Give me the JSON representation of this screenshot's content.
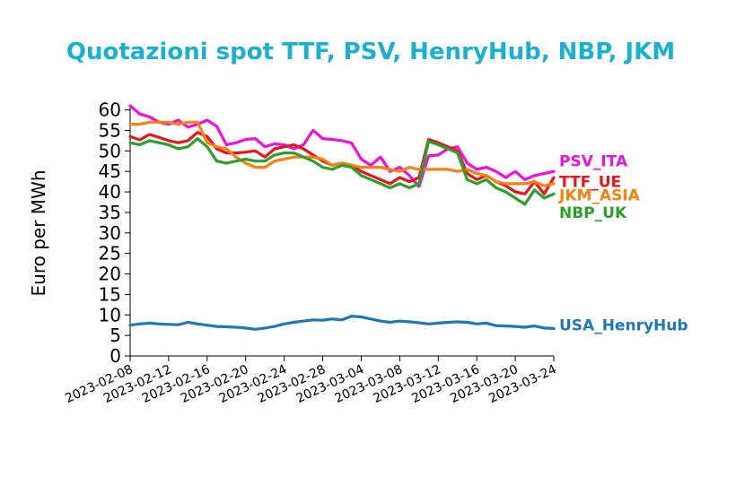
{
  "chart_data": {
    "type": "line",
    "title": "Quotazioni spot TTF, PSV, HenryHub, NBP, JKM",
    "ylabel": "Euro per MWh",
    "xlabel": "",
    "ylim": [
      0,
      61
    ],
    "yticks": [
      0,
      5,
      10,
      15,
      20,
      25,
      30,
      35,
      40,
      45,
      50,
      55,
      60
    ],
    "xlim": [
      "2023-02-08",
      "2023-03-24"
    ],
    "xticks": [
      "2023-02-08",
      "2023-02-12",
      "2023-02-16",
      "2023-02-20",
      "2023-02-24",
      "2023-02-28",
      "2023-03-04",
      "2023-03-08",
      "2023-03-12",
      "2023-03-16",
      "2023-03-20",
      "2023-03-24"
    ],
    "grid": false,
    "legend": "right, labels at series ends",
    "series": [
      {
        "name": "PSV_ITA",
        "color": "#ee11dd",
        "label_value": 47.5,
        "points": [
          [
            "2023-02-08",
            61
          ],
          [
            "2023-02-09",
            59
          ],
          [
            "2023-02-10",
            58.3
          ],
          [
            "2023-02-11",
            57
          ],
          [
            "2023-02-12",
            56.5
          ],
          [
            "2023-02-13",
            57.5
          ],
          [
            "2023-02-14",
            55.8
          ],
          [
            "2023-02-15",
            56.5
          ],
          [
            "2023-02-16",
            57.5
          ],
          [
            "2023-02-17",
            56
          ],
          [
            "2023-02-18",
            51.5
          ],
          [
            "2023-02-19",
            52
          ],
          [
            "2023-02-20",
            52.8
          ],
          [
            "2023-02-21",
            53
          ],
          [
            "2023-02-22",
            51
          ],
          [
            "2023-02-23",
            51.7
          ],
          [
            "2023-02-24",
            51.5
          ],
          [
            "2023-02-25",
            50.5
          ],
          [
            "2023-02-26",
            51.5
          ],
          [
            "2023-02-27",
            55
          ],
          [
            "2023-02-28",
            53
          ],
          [
            "2023-03-01",
            52.8
          ],
          [
            "2023-03-02",
            52.5
          ],
          [
            "2023-03-03",
            51.9
          ],
          [
            "2023-03-04",
            48
          ],
          [
            "2023-03-05",
            46.5
          ],
          [
            "2023-03-06",
            48.5
          ],
          [
            "2023-03-07",
            45
          ],
          [
            "2023-03-08",
            46
          ],
          [
            "2023-03-09",
            44
          ],
          [
            "2023-03-10",
            41.3
          ],
          [
            "2023-03-11",
            48.8
          ],
          [
            "2023-03-12",
            49
          ],
          [
            "2023-03-13",
            50.5
          ],
          [
            "2023-03-14",
            51
          ],
          [
            "2023-03-15",
            47
          ],
          [
            "2023-03-16",
            45.5
          ],
          [
            "2023-03-17",
            46
          ],
          [
            "2023-03-18",
            45
          ],
          [
            "2023-03-19",
            43.5
          ],
          [
            "2023-03-20",
            45
          ],
          [
            "2023-03-21",
            43
          ],
          [
            "2023-03-22",
            44
          ],
          [
            "2023-03-23",
            44.5
          ],
          [
            "2023-03-24",
            45
          ]
        ]
      },
      {
        "name": "TTF_UE",
        "color": "#e8161a",
        "label_value": 42.5,
        "points": [
          [
            "2023-02-08",
            53.5
          ],
          [
            "2023-02-09",
            52.7
          ],
          [
            "2023-02-10",
            54
          ],
          [
            "2023-02-11",
            53.3
          ],
          [
            "2023-02-12",
            52.5
          ],
          [
            "2023-02-13",
            52
          ],
          [
            "2023-02-14",
            52.5
          ],
          [
            "2023-02-15",
            54.5
          ],
          [
            "2023-02-16",
            53.5
          ],
          [
            "2023-02-17",
            50.5
          ],
          [
            "2023-02-18",
            49.5
          ],
          [
            "2023-02-19",
            49.5
          ],
          [
            "2023-02-20",
            49.7
          ],
          [
            "2023-02-21",
            50
          ],
          [
            "2023-02-22",
            48.5
          ],
          [
            "2023-02-23",
            50.5
          ],
          [
            "2023-02-24",
            51
          ],
          [
            "2023-02-25",
            51.5
          ],
          [
            "2023-02-26",
            50.5
          ],
          [
            "2023-02-27",
            49
          ],
          [
            "2023-02-28",
            47.5
          ],
          [
            "2023-03-01",
            46.5
          ],
          [
            "2023-03-02",
            47
          ],
          [
            "2023-03-03",
            46.5
          ],
          [
            "2023-03-04",
            45
          ],
          [
            "2023-03-05",
            44
          ],
          [
            "2023-03-06",
            43
          ],
          [
            "2023-03-07",
            42
          ],
          [
            "2023-03-08",
            43.5
          ],
          [
            "2023-03-09",
            42.5
          ],
          [
            "2023-03-10",
            43.5
          ],
          [
            "2023-03-11",
            52.8
          ],
          [
            "2023-03-12",
            52
          ],
          [
            "2023-03-13",
            51
          ],
          [
            "2023-03-14",
            50
          ],
          [
            "2023-03-15",
            44.5
          ],
          [
            "2023-03-16",
            43
          ],
          [
            "2023-03-17",
            44
          ],
          [
            "2023-03-18",
            42.5
          ],
          [
            "2023-03-19",
            41.5
          ],
          [
            "2023-03-20",
            40
          ],
          [
            "2023-03-21",
            39.5
          ],
          [
            "2023-03-22",
            42.5
          ],
          [
            "2023-03-23",
            39.5
          ],
          [
            "2023-03-24",
            43.5
          ]
        ]
      },
      {
        "name": "JKM_ASIA",
        "color": "#ff7f0e",
        "label_value": 39.3,
        "points": [
          [
            "2023-02-08",
            56.5
          ],
          [
            "2023-02-09",
            56.5
          ],
          [
            "2023-02-10",
            57
          ],
          [
            "2023-02-11",
            57
          ],
          [
            "2023-02-12",
            57
          ],
          [
            "2023-02-13",
            56.5
          ],
          [
            "2023-02-14",
            57
          ],
          [
            "2023-02-15",
            57
          ],
          [
            "2023-02-16",
            52
          ],
          [
            "2023-02-17",
            51
          ],
          [
            "2023-02-18",
            50.5
          ],
          [
            "2023-02-19",
            48.5
          ],
          [
            "2023-02-20",
            47
          ],
          [
            "2023-02-21",
            46
          ],
          [
            "2023-02-22",
            46
          ],
          [
            "2023-02-23",
            47.5
          ],
          [
            "2023-02-24",
            48
          ],
          [
            "2023-02-25",
            48.5
          ],
          [
            "2023-02-26",
            48.5
          ],
          [
            "2023-02-27",
            48.5
          ],
          [
            "2023-02-28",
            48
          ],
          [
            "2023-03-01",
            46.5
          ],
          [
            "2023-03-02",
            47
          ],
          [
            "2023-03-03",
            46.5
          ],
          [
            "2023-03-04",
            46
          ],
          [
            "2023-03-05",
            46
          ],
          [
            "2023-03-06",
            46
          ],
          [
            "2023-03-07",
            45.5
          ],
          [
            "2023-03-08",
            45
          ],
          [
            "2023-03-09",
            46
          ],
          [
            "2023-03-10",
            45.5
          ],
          [
            "2023-03-11",
            45.5
          ],
          [
            "2023-03-12",
            45.5
          ],
          [
            "2023-03-13",
            45.5
          ],
          [
            "2023-03-14",
            45
          ],
          [
            "2023-03-15",
            45.5
          ],
          [
            "2023-03-16",
            44.5
          ],
          [
            "2023-03-17",
            44
          ],
          [
            "2023-03-18",
            42.5
          ],
          [
            "2023-03-19",
            42
          ],
          [
            "2023-03-20",
            42
          ],
          [
            "2023-03-21",
            42
          ],
          [
            "2023-03-22",
            42.5
          ],
          [
            "2023-03-23",
            41.5
          ],
          [
            "2023-03-24",
            42
          ]
        ]
      },
      {
        "name": "NBP_UK",
        "color": "#2ca02c",
        "label_value": 35.0,
        "points": [
          [
            "2023-02-08",
            52
          ],
          [
            "2023-02-09",
            51.5
          ],
          [
            "2023-02-10",
            52.5
          ],
          [
            "2023-02-11",
            52
          ],
          [
            "2023-02-12",
            51.5
          ],
          [
            "2023-02-13",
            50.5
          ],
          [
            "2023-02-14",
            51
          ],
          [
            "2023-02-15",
            53
          ],
          [
            "2023-02-16",
            51
          ],
          [
            "2023-02-17",
            47.5
          ],
          [
            "2023-02-18",
            47
          ],
          [
            "2023-02-19",
            47.5
          ],
          [
            "2023-02-20",
            48
          ],
          [
            "2023-02-21",
            47.5
          ],
          [
            "2023-02-22",
            47.5
          ],
          [
            "2023-02-23",
            49
          ],
          [
            "2023-02-24",
            49.5
          ],
          [
            "2023-02-25",
            49.5
          ],
          [
            "2023-02-26",
            48.5
          ],
          [
            "2023-02-27",
            47.5
          ],
          [
            "2023-02-28",
            46
          ],
          [
            "2023-03-01",
            45.5
          ],
          [
            "2023-03-02",
            46.5
          ],
          [
            "2023-03-03",
            46
          ],
          [
            "2023-03-04",
            44
          ],
          [
            "2023-03-05",
            43
          ],
          [
            "2023-03-06",
            42
          ],
          [
            "2023-03-07",
            41
          ],
          [
            "2023-03-08",
            42
          ],
          [
            "2023-03-09",
            41
          ],
          [
            "2023-03-10",
            42
          ],
          [
            "2023-03-11",
            52.3
          ],
          [
            "2023-03-12",
            51.5
          ],
          [
            "2023-03-13",
            50.5
          ],
          [
            "2023-03-14",
            49.5
          ],
          [
            "2023-03-15",
            43
          ],
          [
            "2023-03-16",
            42
          ],
          [
            "2023-03-17",
            43
          ],
          [
            "2023-03-18",
            41
          ],
          [
            "2023-03-19",
            40
          ],
          [
            "2023-03-20",
            38.5
          ],
          [
            "2023-03-21",
            37
          ],
          [
            "2023-03-22",
            40.5
          ],
          [
            "2023-03-23",
            38.5
          ],
          [
            "2023-03-24",
            39.5
          ]
        ]
      },
      {
        "name": "USA_HenryHub",
        "color": "#1f77b4",
        "label_value": 7.5,
        "points": [
          [
            "2023-02-08",
            7.5
          ],
          [
            "2023-02-09",
            7.8
          ],
          [
            "2023-02-10",
            8
          ],
          [
            "2023-02-11",
            7.8
          ],
          [
            "2023-02-12",
            7.7
          ],
          [
            "2023-02-13",
            7.6
          ],
          [
            "2023-02-14",
            8.2
          ],
          [
            "2023-02-15",
            7.8
          ],
          [
            "2023-02-16",
            7.5
          ],
          [
            "2023-02-17",
            7.2
          ],
          [
            "2023-02-18",
            7.1
          ],
          [
            "2023-02-19",
            7
          ],
          [
            "2023-02-20",
            6.8
          ],
          [
            "2023-02-21",
            6.5
          ],
          [
            "2023-02-22",
            6.8
          ],
          [
            "2023-02-23",
            7.2
          ],
          [
            "2023-02-24",
            7.8
          ],
          [
            "2023-02-25",
            8.2
          ],
          [
            "2023-02-26",
            8.5
          ],
          [
            "2023-02-27",
            8.8
          ],
          [
            "2023-02-28",
            8.7
          ],
          [
            "2023-03-01",
            9
          ],
          [
            "2023-03-02",
            8.8
          ],
          [
            "2023-03-03",
            9.7
          ],
          [
            "2023-03-04",
            9.5
          ],
          [
            "2023-03-05",
            9
          ],
          [
            "2023-03-06",
            8.5
          ],
          [
            "2023-03-07",
            8.2
          ],
          [
            "2023-03-08",
            8.5
          ],
          [
            "2023-03-09",
            8.3
          ],
          [
            "2023-03-10",
            8.1
          ],
          [
            "2023-03-11",
            7.8
          ],
          [
            "2023-03-12",
            8
          ],
          [
            "2023-03-13",
            8.2
          ],
          [
            "2023-03-14",
            8.3
          ],
          [
            "2023-03-15",
            8.2
          ],
          [
            "2023-03-16",
            7.8
          ],
          [
            "2023-03-17",
            8
          ],
          [
            "2023-03-18",
            7.4
          ],
          [
            "2023-03-19",
            7.3
          ],
          [
            "2023-03-20",
            7.2
          ],
          [
            "2023-03-21",
            7
          ],
          [
            "2023-03-22",
            7.3
          ],
          [
            "2023-03-23",
            6.8
          ],
          [
            "2023-03-24",
            6.7
          ]
        ]
      }
    ]
  },
  "colors": {
    "title": "#1ab0d0",
    "axis": "#000000",
    "background": "#ffffff"
  }
}
